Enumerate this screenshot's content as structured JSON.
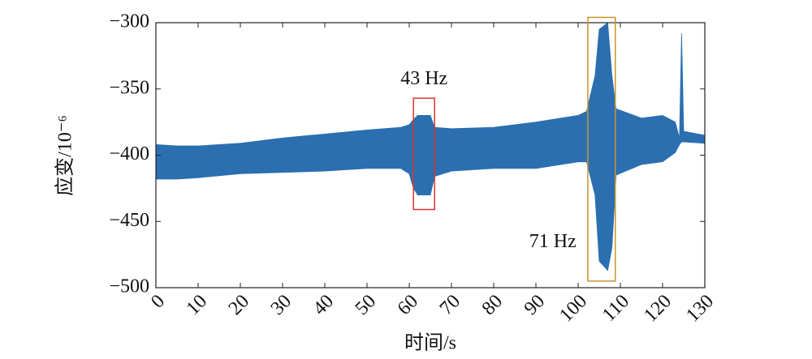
{
  "chart_data": {
    "type": "band",
    "xlabel": "时间/s",
    "ylabel": "应变/10⁻⁶",
    "x": [
      0,
      5,
      10,
      20,
      30,
      40,
      50,
      58,
      60,
      61,
      62,
      65,
      66,
      70,
      80,
      90,
      100,
      102,
      104,
      105,
      107,
      108,
      109,
      115,
      120,
      123,
      124,
      124.5,
      125,
      130
    ],
    "upper": [
      -392,
      -393,
      -393,
      -391,
      -387,
      -384,
      -381,
      -379,
      -377,
      -373,
      -370,
      -370,
      -379,
      -380,
      -379,
      -375,
      -370,
      -367,
      -340,
      -305,
      -300,
      -340,
      -365,
      -372,
      -370,
      -375,
      -387,
      -308,
      -382,
      -385
    ],
    "lower": [
      -418,
      -418,
      -417,
      -414,
      -413,
      -412,
      -410,
      -410,
      -414,
      -425,
      -430,
      -430,
      -416,
      -412,
      -410,
      -410,
      -405,
      -405,
      -430,
      -480,
      -487,
      -470,
      -415,
      -407,
      -405,
      -398,
      -392,
      -390,
      -390,
      -391
    ],
    "color": "#2b6fb0",
    "xlim": [
      0,
      130
    ],
    "xticks": [
      0,
      10,
      20,
      30,
      40,
      50,
      60,
      70,
      80,
      90,
      100,
      110,
      120,
      130
    ],
    "ylim": [
      -500,
      -300
    ],
    "yticks": [
      {
        "value": -500,
        "label": "−500"
      },
      {
        "value": -450,
        "label": "−450"
      },
      {
        "value": -400,
        "label": "−400"
      },
      {
        "value": -350,
        "label": "−350"
      },
      {
        "value": -300,
        "label": "−300"
      }
    ],
    "annotations": [
      {
        "label": "43 Hz",
        "xlim": [
          61,
          66
        ],
        "ylim": [
          -441,
          -357
        ],
        "color": "#e03030",
        "label_at": [
          63.5,
          -343
        ]
      },
      {
        "label": "71 Hz",
        "xlim": [
          102.3,
          108.8
        ],
        "ylim": [
          -495,
          -296
        ],
        "color": "#c8962a",
        "label_at": [
          94,
          -466
        ]
      }
    ]
  }
}
